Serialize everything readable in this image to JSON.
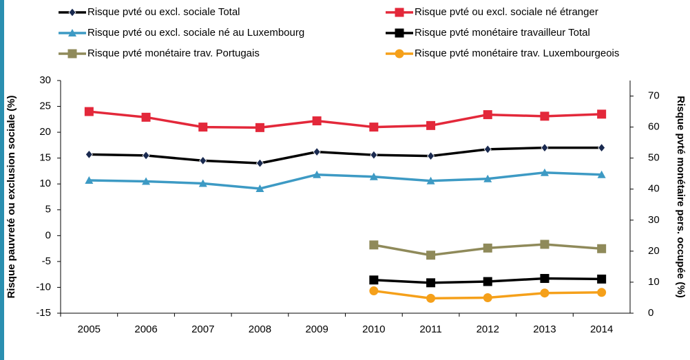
{
  "chart_data": {
    "type": "line",
    "y_label": "Risque pauvreté ou exclusion sociale (%)",
    "y2_label": "Risque pvté monétaire pers. occupée (%)",
    "categories": [
      "2005",
      "2006",
      "2007",
      "2008",
      "2009",
      "2010",
      "2011",
      "2012",
      "2013",
      "2014"
    ],
    "ylim": [
      -15,
      30
    ],
    "yticks": [
      -15,
      -10,
      -5,
      0,
      5,
      10,
      15,
      20,
      25,
      30
    ],
    "y2lim": [
      0,
      75
    ],
    "y2ticks": [
      0,
      10,
      20,
      30,
      40,
      50,
      60,
      70
    ],
    "grid": false,
    "series": [
      {
        "name": "Risque pvté ou excl. sociale Total",
        "color": "#000000",
        "marker": "diamond",
        "values": [
          15.7,
          15.5,
          14.5,
          14.0,
          16.2,
          15.6,
          15.4,
          16.7,
          17.0,
          17.0
        ]
      },
      {
        "name": "Risque pvté ou excl. sociale né étranger",
        "color": "#e3283a",
        "marker": "square",
        "values": [
          24.0,
          22.9,
          21.0,
          20.9,
          22.2,
          21.0,
          21.3,
          23.4,
          23.1,
          23.5
        ]
      },
      {
        "name": "Risque pvté ou excl. sociale né au Luxembourg",
        "color": "#3d9ac4",
        "marker": "triangle",
        "values": [
          10.7,
          10.5,
          10.1,
          9.1,
          11.8,
          11.4,
          10.6,
          11.0,
          12.2,
          11.8
        ]
      },
      {
        "name": "Risque pvté monétaire travailleur Total",
        "color": "#000000",
        "marker": "square",
        "axis": "y2",
        "values": [
          null,
          null,
          null,
          null,
          null,
          10.7,
          9.8,
          10.2,
          11.2,
          11.0
        ]
      },
      {
        "name": "Risque pvté monétaire trav. Portugais",
        "color": "#8f8a5a",
        "marker": "square",
        "axis": "y2",
        "values": [
          null,
          null,
          null,
          null,
          null,
          22.0,
          18.7,
          21.0,
          22.2,
          20.8
        ]
      },
      {
        "name": "Risque pvté monétaire trav. Luxembourgeois",
        "color": "#f5a01a",
        "marker": "circle",
        "axis": "y2",
        "values": [
          null,
          null,
          null,
          null,
          null,
          7.2,
          4.8,
          5.0,
          6.5,
          6.7
        ]
      }
    ]
  }
}
